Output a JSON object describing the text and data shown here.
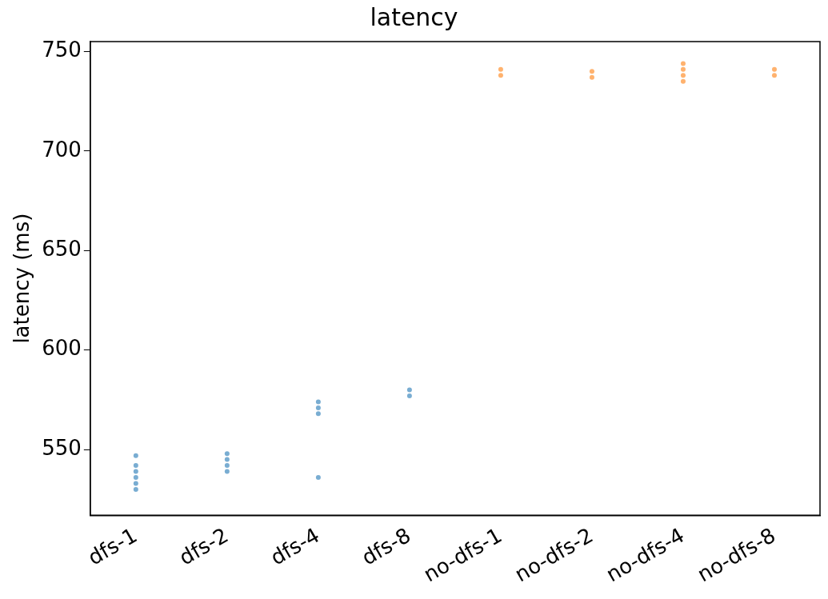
{
  "chart_data": {
    "type": "scatter",
    "title": "latency",
    "ylabel": "latency (ms)",
    "categories": [
      "dfs-1",
      "dfs-2",
      "dfs-4",
      "dfs-8",
      "no-dfs-1",
      "no-dfs-2",
      "no-dfs-4",
      "no-dfs-8"
    ],
    "ylim": [
      517,
      755
    ],
    "yticks": [
      550,
      600,
      650,
      700,
      750
    ],
    "grid": false,
    "legend": false,
    "marker": "circle",
    "series": [
      {
        "color": "#1f77b4",
        "x": [
          "dfs-1",
          "dfs-1",
          "dfs-1",
          "dfs-1",
          "dfs-1",
          "dfs-1",
          "dfs-2",
          "dfs-2",
          "dfs-2",
          "dfs-2",
          "dfs-4",
          "dfs-4",
          "dfs-4",
          "dfs-4",
          "dfs-8",
          "dfs-8"
        ],
        "values": [
          547,
          542,
          539,
          536,
          533,
          530,
          548,
          545,
          542,
          539,
          574,
          571,
          568,
          536,
          580,
          577
        ]
      },
      {
        "color": "#ff7f0e",
        "x": [
          "no-dfs-1",
          "no-dfs-1",
          "no-dfs-2",
          "no-dfs-2",
          "no-dfs-4",
          "no-dfs-4",
          "no-dfs-4",
          "no-dfs-4",
          "no-dfs-8",
          "no-dfs-8"
        ],
        "values": [
          741,
          738,
          740,
          737,
          744,
          741,
          738,
          735,
          741,
          738
        ]
      }
    ]
  }
}
